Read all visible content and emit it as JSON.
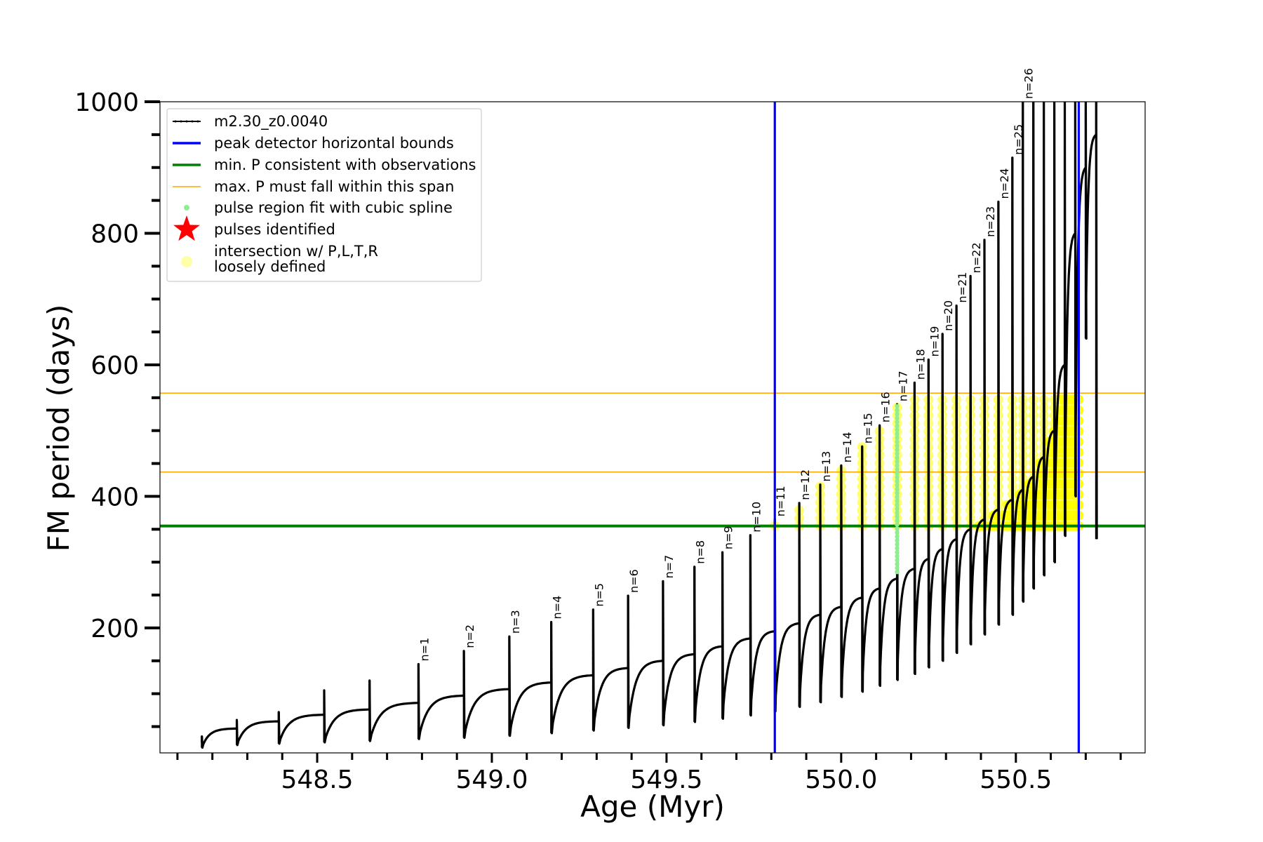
{
  "chart_data": {
    "type": "line",
    "xlabel": "Age (Myr)",
    "ylabel": "FM period (days)",
    "xlim": [
      548.05,
      550.87
    ],
    "ylim": [
      10,
      1000
    ],
    "x_major_ticks": [
      548.5,
      549.0,
      549.5,
      550.0,
      550.5
    ],
    "x_tick_labels": [
      "548.5",
      "549.0",
      "549.5",
      "550.0",
      "550.5"
    ],
    "x_minor_step": 0.1,
    "y_major_ticks": [
      200,
      400,
      600,
      800,
      1000
    ],
    "y_tick_labels": [
      "200",
      "400",
      "600",
      "800",
      "1000"
    ],
    "y_minor_step": 50,
    "grid": false,
    "legend_position": "top-left",
    "legend": [
      {
        "label": "m2.30_z0.0040",
        "kind": "line-marker",
        "color": "#000000"
      },
      {
        "label": "peak detector horizontal bounds",
        "kind": "line",
        "color": "#0000ff"
      },
      {
        "label": "min. P consistent with observations",
        "kind": "line",
        "color": "#008000"
      },
      {
        "label": "max. P must fall within this span",
        "kind": "thin-line",
        "color": "#ffa500"
      },
      {
        "label": "pulse region fit with cubic spline",
        "kind": "dot",
        "color": "#90ee90"
      },
      {
        "label": "pulses identified",
        "kind": "star",
        "color": "#ff0000"
      },
      {
        "label": "intersection w/ P,L,T,R",
        "label2": "loosely defined",
        "kind": "big-dot",
        "color": "#ffffa8"
      }
    ],
    "vertical_lines": [
      {
        "name": "peak detector horizontal bounds",
        "x": 549.81,
        "color": "#0000ff"
      },
      {
        "name": "peak detector horizontal bounds",
        "x": 550.68,
        "color": "#0000ff"
      }
    ],
    "horizontal_lines": [
      {
        "name": "min. P consistent with observations",
        "y": 355,
        "color": "#008000"
      },
      {
        "name": "max. P must fall within this span",
        "y": 437,
        "color": "#ffa500"
      },
      {
        "name": "max. P must fall within this span",
        "y": 557,
        "color": "#ffa500"
      }
    ],
    "series": [
      {
        "name": "m2.30_z0.0040",
        "color": "#000000",
        "pulses": [
          {
            "n": "",
            "age": 548.17,
            "peak": 35,
            "baseline": 28,
            "trough": 18
          },
          {
            "n": "",
            "age": 548.27,
            "peak": 60,
            "baseline": 47,
            "trough": 22
          },
          {
            "n": "",
            "age": 548.39,
            "peak": 72,
            "baseline": 58,
            "trough": 24
          },
          {
            "n": "",
            "age": 548.52,
            "peak": 105,
            "baseline": 68,
            "trough": 26
          },
          {
            "n": "",
            "age": 548.65,
            "peak": 120,
            "baseline": 76,
            "trough": 28
          },
          {
            "n": "n=1",
            "age": 548.79,
            "peak": 145,
            "baseline": 86,
            "trough": 31
          },
          {
            "n": "n=2",
            "age": 548.92,
            "peak": 165,
            "baseline": 97,
            "trough": 33
          },
          {
            "n": "n=3",
            "age": 549.05,
            "peak": 187,
            "baseline": 107,
            "trough": 36
          },
          {
            "n": "n=4",
            "age": 549.17,
            "peak": 209,
            "baseline": 117,
            "trough": 40
          },
          {
            "n": "n=5",
            "age": 549.29,
            "peak": 228,
            "baseline": 128,
            "trough": 44
          },
          {
            "n": "n=6",
            "age": 549.39,
            "peak": 249,
            "baseline": 139,
            "trough": 48
          },
          {
            "n": "n=7",
            "age": 549.49,
            "peak": 271,
            "baseline": 150,
            "trough": 52
          },
          {
            "n": "n=8",
            "age": 549.58,
            "peak": 293,
            "baseline": 160,
            "trough": 57
          },
          {
            "n": "n=9",
            "age": 549.66,
            "peak": 315,
            "baseline": 172,
            "trough": 62
          },
          {
            "n": "n=10",
            "age": 549.74,
            "peak": 341,
            "baseline": 184,
            "trough": 67
          },
          {
            "n": "n=11",
            "age": 549.81,
            "peak": 365,
            "baseline": 195,
            "trough": 73
          },
          {
            "n": "n=12",
            "age": 549.88,
            "peak": 390,
            "baseline": 207,
            "trough": 80
          },
          {
            "n": "n=13",
            "age": 549.94,
            "peak": 418,
            "baseline": 220,
            "trough": 87
          },
          {
            "n": "n=14",
            "age": 550.0,
            "peak": 447,
            "baseline": 232,
            "trough": 95
          },
          {
            "n": "n=15",
            "age": 550.06,
            "peak": 476,
            "baseline": 246,
            "trough": 103
          },
          {
            "n": "n=16",
            "age": 550.11,
            "peak": 508,
            "baseline": 260,
            "trough": 112
          },
          {
            "n": "n=17",
            "age": 550.16,
            "peak": 540,
            "baseline": 275,
            "trough": 121
          },
          {
            "n": "n=18",
            "age": 550.21,
            "peak": 573,
            "baseline": 290,
            "trough": 130
          },
          {
            "n": "n=19",
            "age": 550.25,
            "peak": 608,
            "baseline": 305,
            "trough": 140
          },
          {
            "n": "n=20",
            "age": 550.29,
            "peak": 647,
            "baseline": 320,
            "trough": 150
          },
          {
            "n": "n=21",
            "age": 550.33,
            "peak": 690,
            "baseline": 335,
            "trough": 162
          },
          {
            "n": "n=22",
            "age": 550.37,
            "peak": 735,
            "baseline": 350,
            "trough": 175
          },
          {
            "n": "n=23",
            "age": 550.41,
            "peak": 790,
            "baseline": 365,
            "trough": 190
          },
          {
            "n": "n=24",
            "age": 550.45,
            "peak": 848,
            "baseline": 380,
            "trough": 205
          },
          {
            "n": "n=25",
            "age": 550.49,
            "peak": 915,
            "baseline": 395,
            "trough": 220
          },
          {
            "n": "n=26",
            "age": 550.52,
            "peak": 1000,
            "baseline": 410,
            "trough": 240
          },
          {
            "n": "",
            "age": 550.55,
            "peak": 1000,
            "baseline": 430,
            "trough": 260
          },
          {
            "n": "",
            "age": 550.58,
            "peak": 1000,
            "baseline": 460,
            "trough": 280
          },
          {
            "n": "",
            "age": 550.61,
            "peak": 1000,
            "baseline": 500,
            "trough": 300
          },
          {
            "n": "",
            "age": 550.64,
            "peak": 1000,
            "baseline": 600,
            "trough": 340
          },
          {
            "n": "",
            "age": 550.67,
            "peak": 1000,
            "baseline": 800,
            "trough": 400
          },
          {
            "n": "",
            "age": 550.7,
            "peak": 1000,
            "baseline": 900,
            "trough": 640
          },
          {
            "n": "",
            "age": 550.73,
            "peak": 1000,
            "baseline": 950,
            "trough": 335
          }
        ]
      }
    ],
    "spline_regions": [
      {
        "age": 550.16,
        "pmin": 285,
        "pmax": 540,
        "color": "#90ee90"
      }
    ],
    "highlight_regions": [
      {
        "name": "intersection w/ P,L,T,R loosely defined",
        "age_min": 549.81,
        "age_max": 550.68,
        "pmin": 355,
        "pmax": 557,
        "color": "#ffff00"
      }
    ]
  }
}
